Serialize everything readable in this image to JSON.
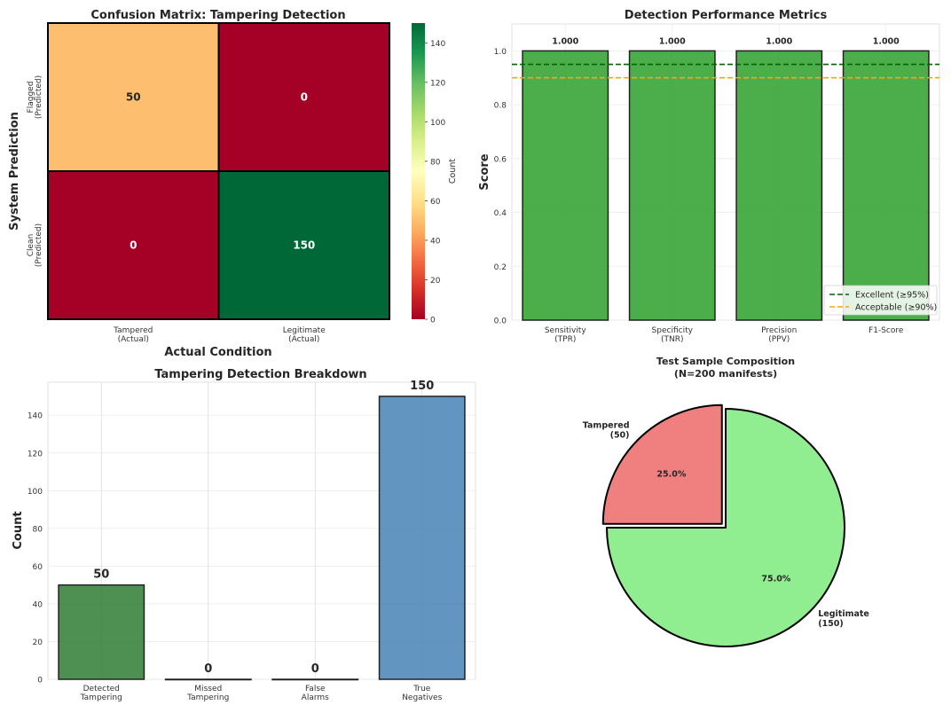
{
  "chart_data": [
    {
      "type": "heatmap",
      "title": "Confusion Matrix: Tampering Detection",
      "xlabel": "Actual Condition",
      "ylabel": "System Prediction",
      "x_categories": [
        [
          "Tampered",
          "(Actual)"
        ],
        [
          "Legitimate",
          "(Actual)"
        ]
      ],
      "y_categories": [
        [
          "Flagged",
          "(Predicted)"
        ],
        [
          "Clean",
          "(Predicted)"
        ]
      ],
      "values": [
        [
          50,
          0
        ],
        [
          0,
          150
        ]
      ],
      "colorbar_label": "Count",
      "colorbar_ticks": [
        0,
        20,
        40,
        60,
        80,
        100,
        120,
        140
      ],
      "vmin": 0,
      "vmax": 150,
      "colormap": "RdYlGn"
    },
    {
      "type": "bar",
      "title": "Detection Performance Metrics",
      "xlabel": "",
      "ylabel": "Score",
      "categories": [
        [
          "Sensitivity",
          "(TPR)"
        ],
        [
          "Specificity",
          "(TNR)"
        ],
        [
          "Precision",
          "(PPV)"
        ],
        [
          "F1-Score"
        ]
      ],
      "values": [
        1.0,
        1.0,
        1.0,
        1.0
      ],
      "value_labels": [
        "1.000",
        "1.000",
        "1.000",
        "1.000"
      ],
      "ylim": [
        0,
        1.1
      ],
      "yticks": [
        0.0,
        0.2,
        0.4,
        0.6,
        0.8,
        1.0
      ],
      "bar_color": "#2ca02c",
      "reference_lines": [
        {
          "label": "Excellent (≥95%)",
          "value": 0.95,
          "color": "#006400",
          "style": "dashed"
        },
        {
          "label": "Acceptable (≥90%)",
          "value": 0.9,
          "color": "#ffa500",
          "style": "dashed"
        }
      ],
      "legend_position": "bottom-right",
      "grid": true
    },
    {
      "type": "bar",
      "title": "Tampering Detection Breakdown",
      "xlabel": "",
      "ylabel": "Count",
      "categories": [
        [
          "Detected",
          "Tampering"
        ],
        [
          "Missed",
          "Tampering"
        ],
        [
          "False",
          "Alarms"
        ],
        [
          "True",
          "Negatives"
        ]
      ],
      "values": [
        50,
        0,
        0,
        150
      ],
      "value_labels": [
        "50",
        "0",
        "0",
        "150"
      ],
      "colors": [
        "#2e7d32",
        "#d32f2f",
        "#ff8c00",
        "#4682b4"
      ],
      "ylim": [
        0,
        157.5
      ],
      "yticks": [
        0,
        20,
        40,
        60,
        80,
        100,
        120,
        140
      ],
      "grid": true
    },
    {
      "type": "pie",
      "title": [
        "Test Sample Composition",
        "(N=200 manifests)"
      ],
      "slices": [
        {
          "label": [
            "Tampered",
            "(50)"
          ],
          "value": 50,
          "pct_label": "25.0%",
          "color": "#f08080",
          "explode": true
        },
        {
          "label": [
            "Legitimate",
            "(150)"
          ],
          "value": 150,
          "pct_label": "75.0%",
          "color": "#90ee90",
          "explode": false
        }
      ]
    }
  ]
}
